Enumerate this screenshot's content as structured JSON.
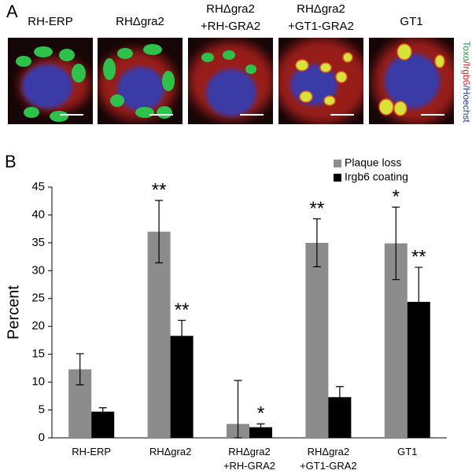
{
  "panel_labels": [
    "A",
    "B"
  ],
  "micrographs": {
    "titles": [
      [
        "RH-ERP"
      ],
      [
        "RHΔgra2"
      ],
      [
        "RHΔgra2",
        "+RH-GRA2"
      ],
      [
        "RHΔgra2",
        "+GT1-GRA2"
      ],
      [
        "GT1"
      ]
    ],
    "stain_label": [
      {
        "text": "Toxo",
        "color": "#1aa34a"
      },
      {
        "text": "/Irgb6",
        "color": "#e0201b"
      },
      {
        "text": "/Hoechst",
        "color": "#2b3a9e"
      }
    ]
  },
  "chart_data": {
    "type": "bar",
    "y_label": "Percent",
    "categories": [
      [
        "RH-ERP"
      ],
      [
        "RHΔgra2"
      ],
      [
        "RHΔgra2",
        "+RH-GRA2"
      ],
      [
        "RHΔgra2",
        "+GT1-GRA2"
      ],
      [
        "GT1"
      ]
    ],
    "series": [
      {
        "name": "Plaque loss",
        "color": "#8c8c8c",
        "values": [
          12.3,
          37,
          2.5,
          35,
          34.9
        ],
        "errors": [
          2.8,
          5.6,
          7.8,
          4.3,
          6.5
        ],
        "significance": [
          null,
          "**",
          null,
          "**",
          "*"
        ]
      },
      {
        "name": "Irgb6 coating",
        "color": "#000000",
        "values": [
          4.7,
          18.3,
          1.9,
          7.3,
          24.4
        ],
        "errors": [
          0.7,
          2.8,
          0.6,
          1.9,
          6.2
        ],
        "significance": [
          null,
          "**",
          "*",
          null,
          "**"
        ]
      }
    ],
    "ylim": [
      0,
      45
    ],
    "yticks": [
      0,
      5,
      10,
      15,
      20,
      25,
      30,
      35,
      40,
      45
    ],
    "legend": "top-right"
  }
}
